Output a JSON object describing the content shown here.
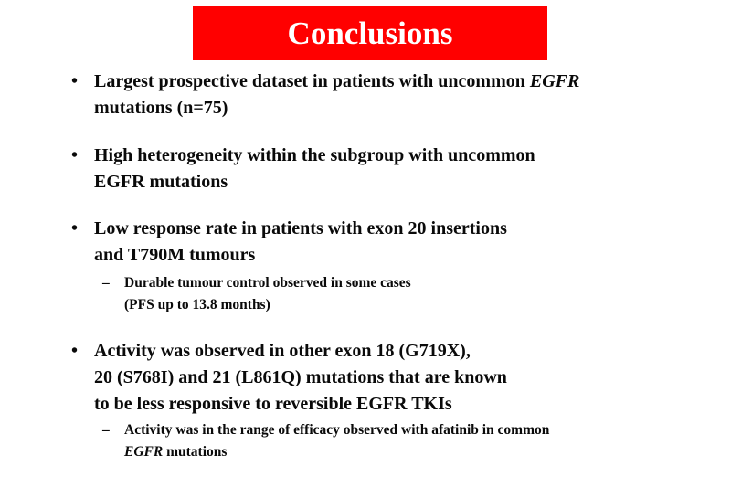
{
  "title": "Conclusions",
  "bullet_symbol": "•",
  "dash_symbol": "–",
  "bullets": [
    {
      "line1_a": "Largest prospective dataset in patients with uncommon ",
      "line1_b": "EGFR",
      "line2": "mutations (n=75)"
    },
    {
      "line1": "High heterogeneity within the subgroup with uncommon",
      "line2": "EGFR mutations"
    },
    {
      "line1": "Low response rate in patients with exon 20 insertions",
      "line2": "and T790M tumours",
      "sub": {
        "line1": "Durable tumour control observed in some cases",
        "line2": "(PFS up to 13.8 months)"
      }
    },
    {
      "line1": "Activity was observed in other exon 18 (G719X),",
      "line2": "20 (S768I) and 21 (L861Q) mutations that are known",
      "line3": "to be less responsive to reversible EGFR TKIs",
      "sub": {
        "line1": "Activity was in the range of efficacy observed with afatinib in common",
        "line2_a": "EGFR",
        "line2_b": " mutations"
      }
    }
  ]
}
